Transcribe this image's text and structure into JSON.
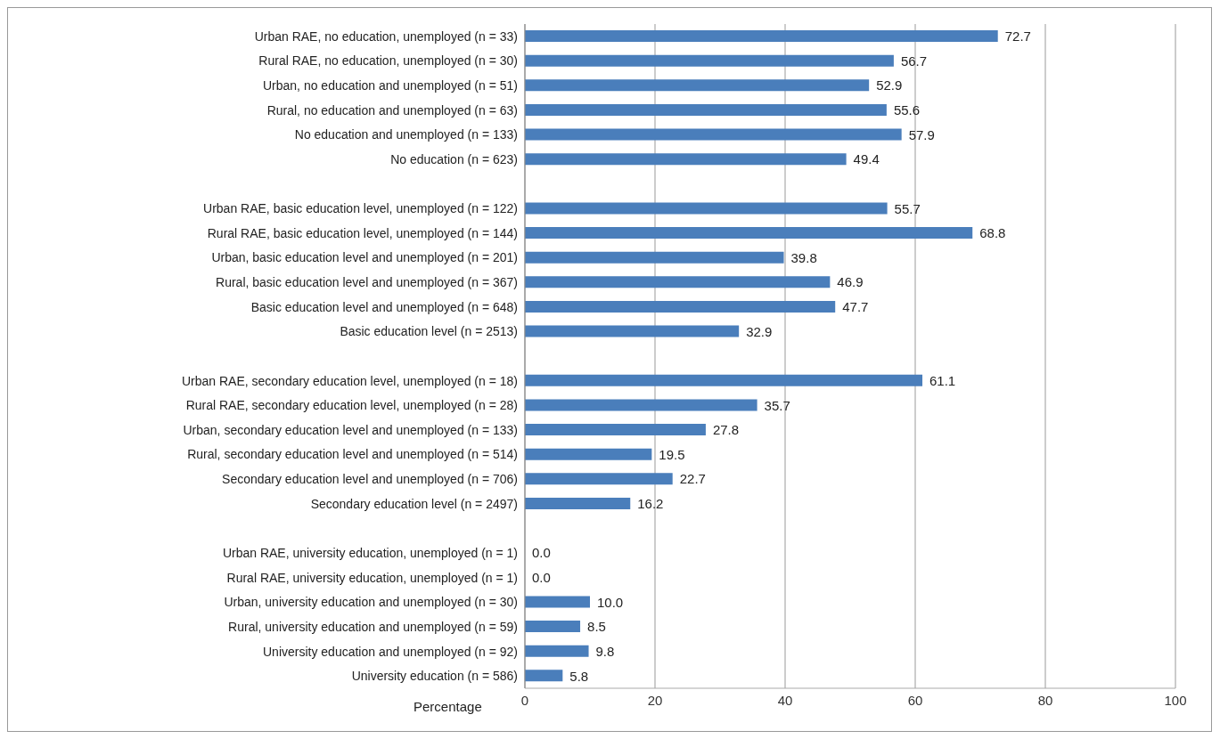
{
  "chart_data": {
    "type": "bar",
    "orientation": "horizontal",
    "xlabel": "Percentage",
    "categories": [
      "Urban RAE, no education, unemployed (n = 33)",
      "Rural RAE, no education, unemployed (n = 30)",
      "Urban, no education and unemployed (n = 51)",
      "Rural, no education and unemployed (n = 63)",
      "No education and unemployed (n = 133)",
      "No education (n = 623)",
      null,
      "Urban RAE, basic education level, unemployed (n = 122)",
      "Rural RAE, basic education level, unemployed (n = 144)",
      "Urban, basic education level and unemployed (n = 201)",
      "Rural, basic  education level and unemployed (n = 367)",
      "Basic education level and unemployed (n = 648)",
      "Basic education level (n = 2513)",
      null,
      "Urban RAE, secondary education level, unemployed (n = 18)",
      "Rural RAE, secondary education level, unemployed (n = 28)",
      "Urban, secondary education level and unemployed (n = 133)",
      "Rural, secondary education level and unemployed (n = 514)",
      "Secondary education level and unemployed (n = 706)",
      "Secondary education level (n = 2497)",
      null,
      "Urban RAE, university education, unemployed (n = 1)",
      "Rural RAE, university education, unemployed (n = 1)",
      "Urban, university education and unemployed (n = 30)",
      "Rural, university education and unemployed (n = 59)",
      "University education and unemployed (n = 92)",
      "University education (n = 586)"
    ],
    "values": [
      72.7,
      56.7,
      52.9,
      55.6,
      57.9,
      49.4,
      null,
      55.7,
      68.8,
      39.8,
      46.9,
      47.7,
      32.9,
      null,
      61.1,
      35.7,
      27.8,
      19.5,
      22.7,
      16.2,
      null,
      0,
      0,
      10,
      8.5,
      9.8,
      5.8
    ],
    "value_labels": [
      "72.7",
      "56.7",
      "52.9",
      "55.6",
      "57.9",
      "49.4",
      null,
      "55.7",
      "68.8",
      "39.8",
      "46.9",
      "47.7",
      "32.9",
      null,
      "61.1",
      "35.7",
      "27.8",
      "19.5",
      "22.7",
      "16.2",
      null,
      "0.0",
      "0.0",
      "10.0",
      "8.5",
      "9.8",
      "5.8"
    ],
    "color": "#4a7ebb",
    "xlim": [
      0,
      100
    ],
    "xticks": [
      0,
      20,
      40,
      60,
      80,
      100
    ],
    "grid": "x"
  }
}
